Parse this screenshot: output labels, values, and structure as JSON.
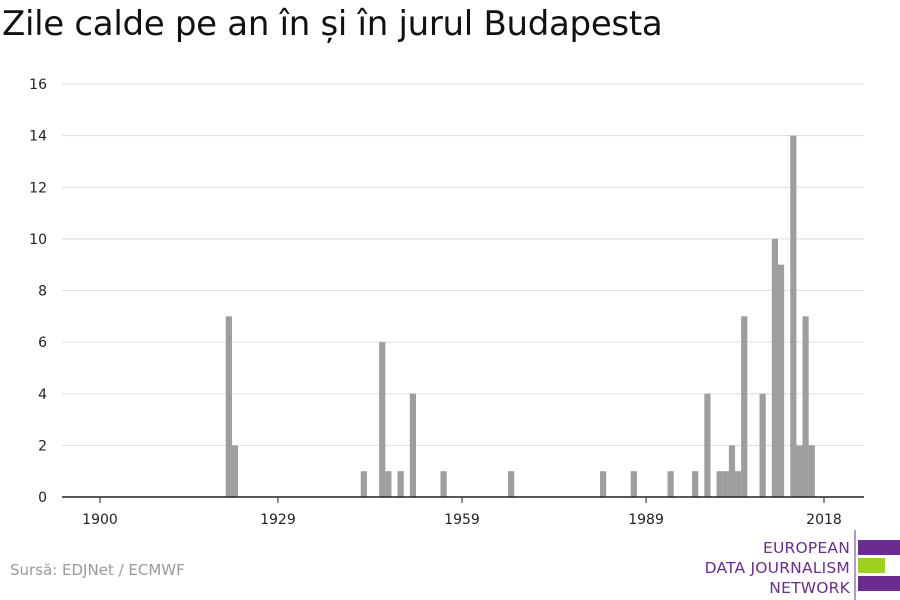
{
  "title": "Zile calde pe an în și în jurul Budapesta",
  "source": "Sursă: EDJNet / ECMWF",
  "logo": {
    "lines": [
      "EUROPEAN",
      "DATA JOURNALISM",
      "NETWORK"
    ],
    "colors": {
      "purple": "#6a2c91",
      "green": "#9ed11f"
    }
  },
  "colors": {
    "bar": "#9e9e9e",
    "grid": "#dddddd",
    "axis": "#222222"
  },
  "chart_data": {
    "type": "bar",
    "title": "Zile calde pe an în și în jurul Budapesta",
    "xlabel": "",
    "ylabel": "",
    "xlim": [
      1894,
      2028
    ],
    "ylim": [
      0,
      16
    ],
    "x_ticks": [
      1900,
      1929,
      1959,
      1989,
      2018
    ],
    "y_ticks": [
      0,
      2,
      4,
      6,
      8,
      10,
      12,
      14,
      16
    ],
    "grid": true,
    "x": [
      1921,
      1922,
      1943,
      1946,
      1947,
      1949,
      1951,
      1956,
      1967,
      1982,
      1987,
      1993,
      1997,
      1999,
      2001,
      2002,
      2003,
      2004,
      2005,
      2008,
      2010,
      2011,
      2013,
      2014,
      2015,
      2016
    ],
    "values": [
      7,
      2,
      1,
      6,
      1,
      1,
      4,
      1,
      1,
      1,
      1,
      1,
      1,
      4,
      1,
      1,
      2,
      1,
      7,
      4,
      10,
      9,
      14,
      2,
      7,
      2
    ]
  }
}
